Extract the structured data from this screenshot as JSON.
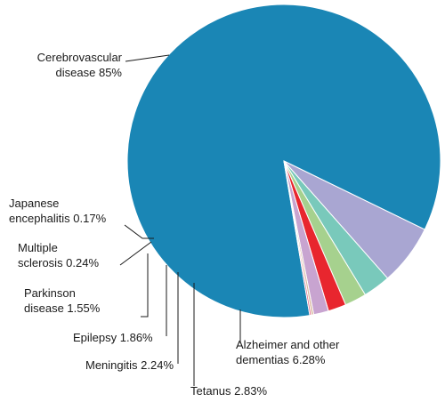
{
  "chart_data": {
    "type": "pie",
    "title": "",
    "slices": [
      {
        "label": "Cerebrovascular",
        "label2": "disease 85%",
        "value": 85,
        "color": "#1a86b5"
      },
      {
        "label": "Alzheimer and other",
        "label2": "dementias 6.28%",
        "value": 6.28,
        "color": "#a9a6d2"
      },
      {
        "label": "Tetanus 2.83%",
        "label2": "",
        "value": 2.83,
        "color": "#79c9bb"
      },
      {
        "label": "Meningitis 2.24%",
        "label2": "",
        "value": 2.24,
        "color": "#a6d18e"
      },
      {
        "label": "Epilepsy 1.86%",
        "label2": "",
        "value": 1.86,
        "color": "#e8262e"
      },
      {
        "label": "Parkinson",
        "label2": "disease 1.55%",
        "value": 1.55,
        "color": "#c8a4d0"
      },
      {
        "label": "Multiple",
        "label2": "sclerosis 0.24%",
        "value": 0.24,
        "color": "#d9b8a0"
      },
      {
        "label": "Japanese",
        "label2": "encephalitis 0.17%",
        "value": 0.17,
        "color": "#e0607e"
      }
    ]
  }
}
